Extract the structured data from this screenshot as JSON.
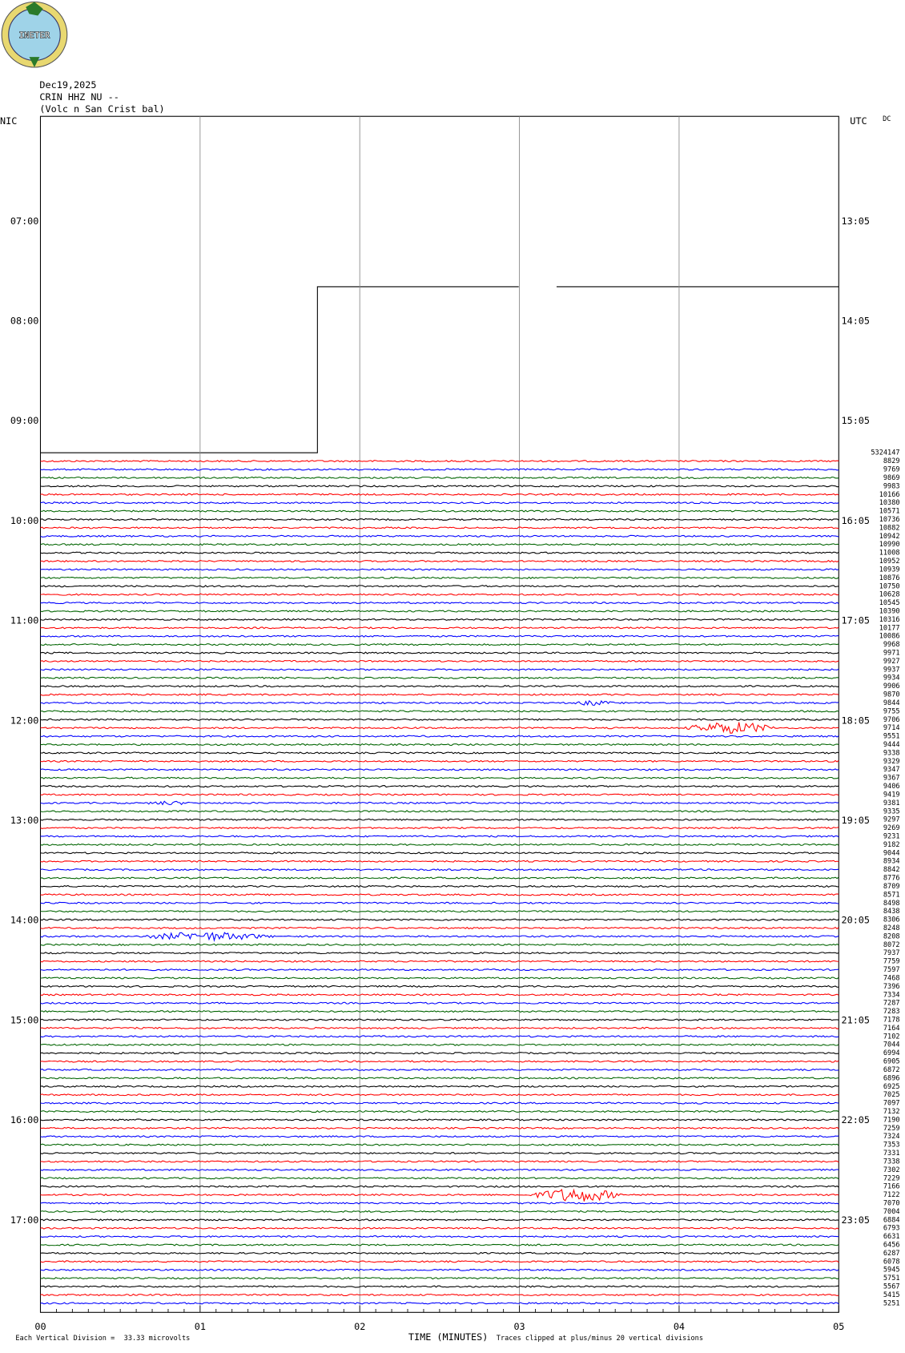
{
  "logo": "INETER",
  "header": {
    "date": "Dec19,2025",
    "station": "CRIN HHZ NU --",
    "location": "(Volc n San Crist bal)"
  },
  "left_label": "NIC",
  "right_label": "UTC",
  "corner_label": "DC",
  "left_times": [
    "07:00",
    "08:00",
    "09:00",
    "10:00",
    "11:00",
    "12:00",
    "13:00",
    "14:00",
    "15:00",
    "16:00",
    "17:00"
  ],
  "right_times": [
    "13:05",
    "14:05",
    "15:05",
    "16:05",
    "17:05",
    "18:05",
    "19:05",
    "20:05",
    "21:05",
    "22:05",
    "23:05"
  ],
  "trace_colors": [
    "#000000",
    "#ff0000",
    "#0000ff",
    "#006400"
  ],
  "trace_counts": [
    5324147,
    8829,
    9769,
    9869,
    9983,
    10166,
    10380,
    10571,
    10736,
    10882,
    10942,
    10990,
    11008,
    10952,
    10939,
    10876,
    10750,
    10628,
    10545,
    10390,
    10316,
    10177,
    10086,
    9968,
    9971,
    9927,
    9937,
    9934,
    9906,
    9870,
    9844,
    9755,
    9706,
    9714,
    9551,
    9444,
    9338,
    9329,
    9347,
    9367,
    9406,
    9419,
    9381,
    9335,
    9297,
    9269,
    9231,
    9182,
    9044,
    8934,
    8842,
    8776,
    8709,
    8571,
    8498,
    8438,
    8306,
    8248,
    8208,
    8072,
    7937,
    7759,
    7597,
    7468,
    7396,
    7334,
    7287,
    7283,
    7178,
    7164,
    7102,
    7044,
    6994,
    6905,
    6872,
    6896,
    6925,
    7025,
    7097,
    7132,
    7190,
    7259,
    7324,
    7353,
    7331,
    7338,
    7302,
    7229,
    7166,
    7122,
    7070,
    7004,
    6884,
    6793,
    6631,
    6456,
    6287,
    6078,
    5945,
    5751,
    5567,
    5415,
    5251
  ],
  "x_ticks": [
    "00",
    "01",
    "02",
    "03",
    "04",
    "05"
  ],
  "x_axis_label": "TIME (MINUTES)",
  "footer": {
    "division": "Each Vertical Division =",
    "microvolts": "33.33 microvolts",
    "clip": "Traces clipped at plus/minus 20 vertical divisions"
  }
}
